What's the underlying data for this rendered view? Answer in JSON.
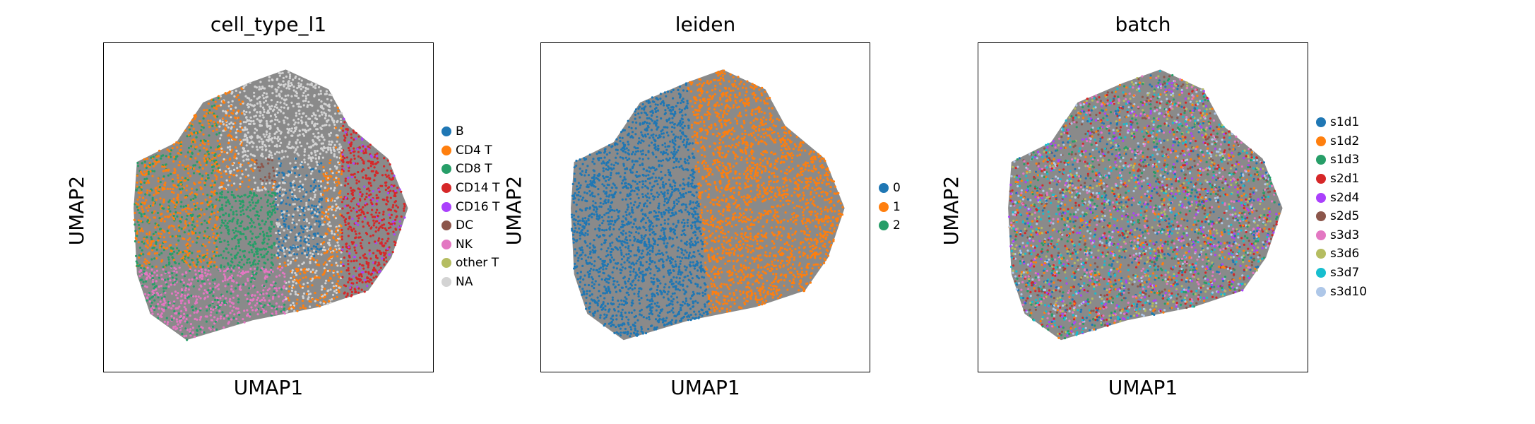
{
  "chart_data": [
    {
      "type": "scatter",
      "title": "cell_type_l1",
      "xlabel": "UMAP1",
      "ylabel": "UMAP2",
      "grid": false,
      "legend_position": "right",
      "categories": [
        "B",
        "CD4 T",
        "CD8 T",
        "CD14 T",
        "CD16 T",
        "DC",
        "NK",
        "other T",
        "NA"
      ],
      "colors": [
        "#1f77b4",
        "#ff7f0e",
        "#279e68",
        "#d62728",
        "#aa40fc",
        "#8c564b",
        "#e377c2",
        "#b5bd61",
        "#d3d3d3"
      ]
    },
    {
      "type": "scatter",
      "title": "leiden",
      "xlabel": "UMAP1",
      "ylabel": "UMAP2",
      "grid": false,
      "legend_position": "right",
      "categories": [
        "0",
        "1",
        "2"
      ],
      "colors": [
        "#1f77b4",
        "#ff7f0e",
        "#279e68"
      ]
    },
    {
      "type": "scatter",
      "title": "batch",
      "xlabel": "UMAP1",
      "ylabel": "UMAP2",
      "grid": false,
      "legend_position": "right",
      "categories": [
        "s1d1",
        "s1d2",
        "s1d3",
        "s2d1",
        "s2d4",
        "s2d5",
        "s3d3",
        "s3d6",
        "s3d7",
        "s3d10"
      ],
      "colors": [
        "#1f77b4",
        "#ff7f0e",
        "#279e68",
        "#d62728",
        "#aa40fc",
        "#8c564b",
        "#e377c2",
        "#b5bd61",
        "#17becf",
        "#aec7e8"
      ]
    }
  ]
}
